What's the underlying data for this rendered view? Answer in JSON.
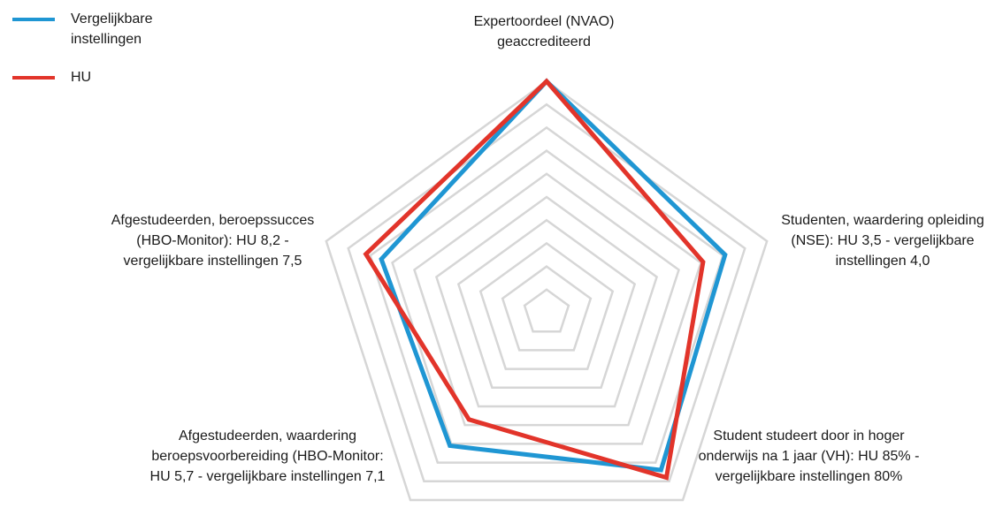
{
  "chart_data": {
    "type": "radar",
    "title": "",
    "axes": [
      "Expertoordeel (NVAO) geaccrediteerd",
      "Studenten, waardering opleiding (NSE): HU 3,5 - vergelijkbare instellingen 4,0",
      "Student studeert door in hoger onderwijs na 1 jaar (VH): HU 85% - vergelijkbare instellingen 80%",
      "Afgestudeerden, waardering beroepsvoorbereiding (HBO-Monitor: HU 5,7 - vergelijkbare instellingen 7,1",
      "Afgestudeerden, beroepssucces (HBO-Monitor): HU 8,2 - vergelijkbare instellingen 7,5"
    ],
    "scale": {
      "min": 0,
      "max": 10,
      "rings": 10,
      "grid": true
    },
    "series": [
      {
        "name": "Vergelijkbare instellingen",
        "color": "#1f96d3",
        "values": [
          10,
          8.1,
          8.4,
          7.1,
          7.5
        ]
      },
      {
        "name": "HU",
        "color": "#e2342a",
        "values": [
          10,
          7.1,
          8.8,
          5.7,
          8.2
        ]
      }
    ],
    "legend": "top-left",
    "grid_color": "#d6d6d6"
  },
  "legend": {
    "items": [
      {
        "label": "Vergelijkbare instellingen",
        "color": "#1f96d3"
      },
      {
        "label": "HU",
        "color": "#e2342a"
      }
    ]
  },
  "labels": {
    "axis0": "Expertoordeel (NVAO) geaccrediteerd",
    "axis1": "Studenten, waardering opleiding (NSE): HU 3,5 - vergelijkbare instellingen 4,0",
    "axis2": "Student studeert door in hoger onderwijs na 1 jaar (VH): HU 85% - vergelijkbare instellingen 80%",
    "axis3": "Afgestudeerden, waardering beroepsvoorbereiding (HBO-Monitor: HU 5,7 - vergelijkbare instellingen 7,1",
    "axis4": "Afgestudeerden, beroepssucces (HBO-Monitor): HU 8,2 - vergelijkbare instellingen 7,5"
  }
}
